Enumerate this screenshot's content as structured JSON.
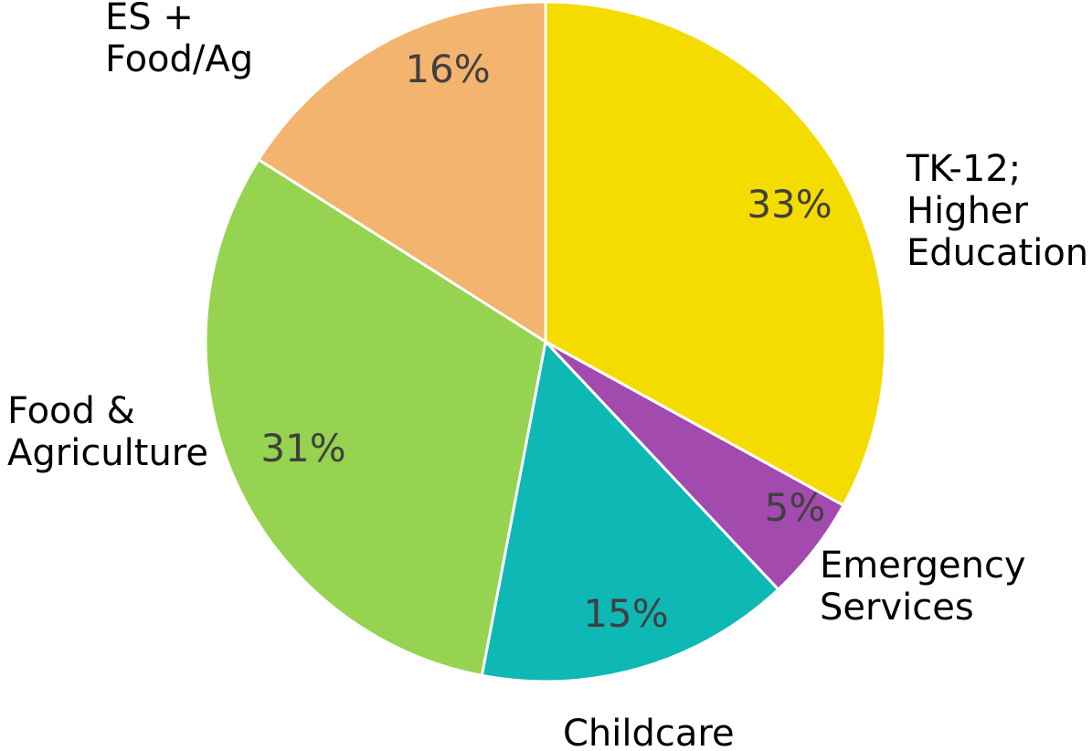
{
  "chart_data": {
    "type": "pie",
    "title": "",
    "slices": [
      {
        "name_lines": [
          "TK-12;",
          "Higher",
          "Education"
        ],
        "value": 33,
        "value_label": "33%",
        "color": "#F5DC00"
      },
      {
        "name_lines": [
          "Emergency",
          "Services"
        ],
        "value": 5,
        "value_label": "5%",
        "color": "#A24AAD"
      },
      {
        "name_lines": [
          "Childcare"
        ],
        "value": 15,
        "value_label": "15%",
        "color": "#0DB8B5"
      },
      {
        "name_lines": [
          "Food &",
          "Agriculture"
        ],
        "value": 31,
        "value_label": "31%",
        "color": "#95D350"
      },
      {
        "name_lines": [
          "ES +",
          "Food/Ag"
        ],
        "value": 16,
        "value_label": "16%",
        "color": "#F2B46E"
      }
    ],
    "start": "12 o'clock",
    "direction": "clockwise",
    "legend": "none",
    "slice_border_color": "#ffffff"
  }
}
